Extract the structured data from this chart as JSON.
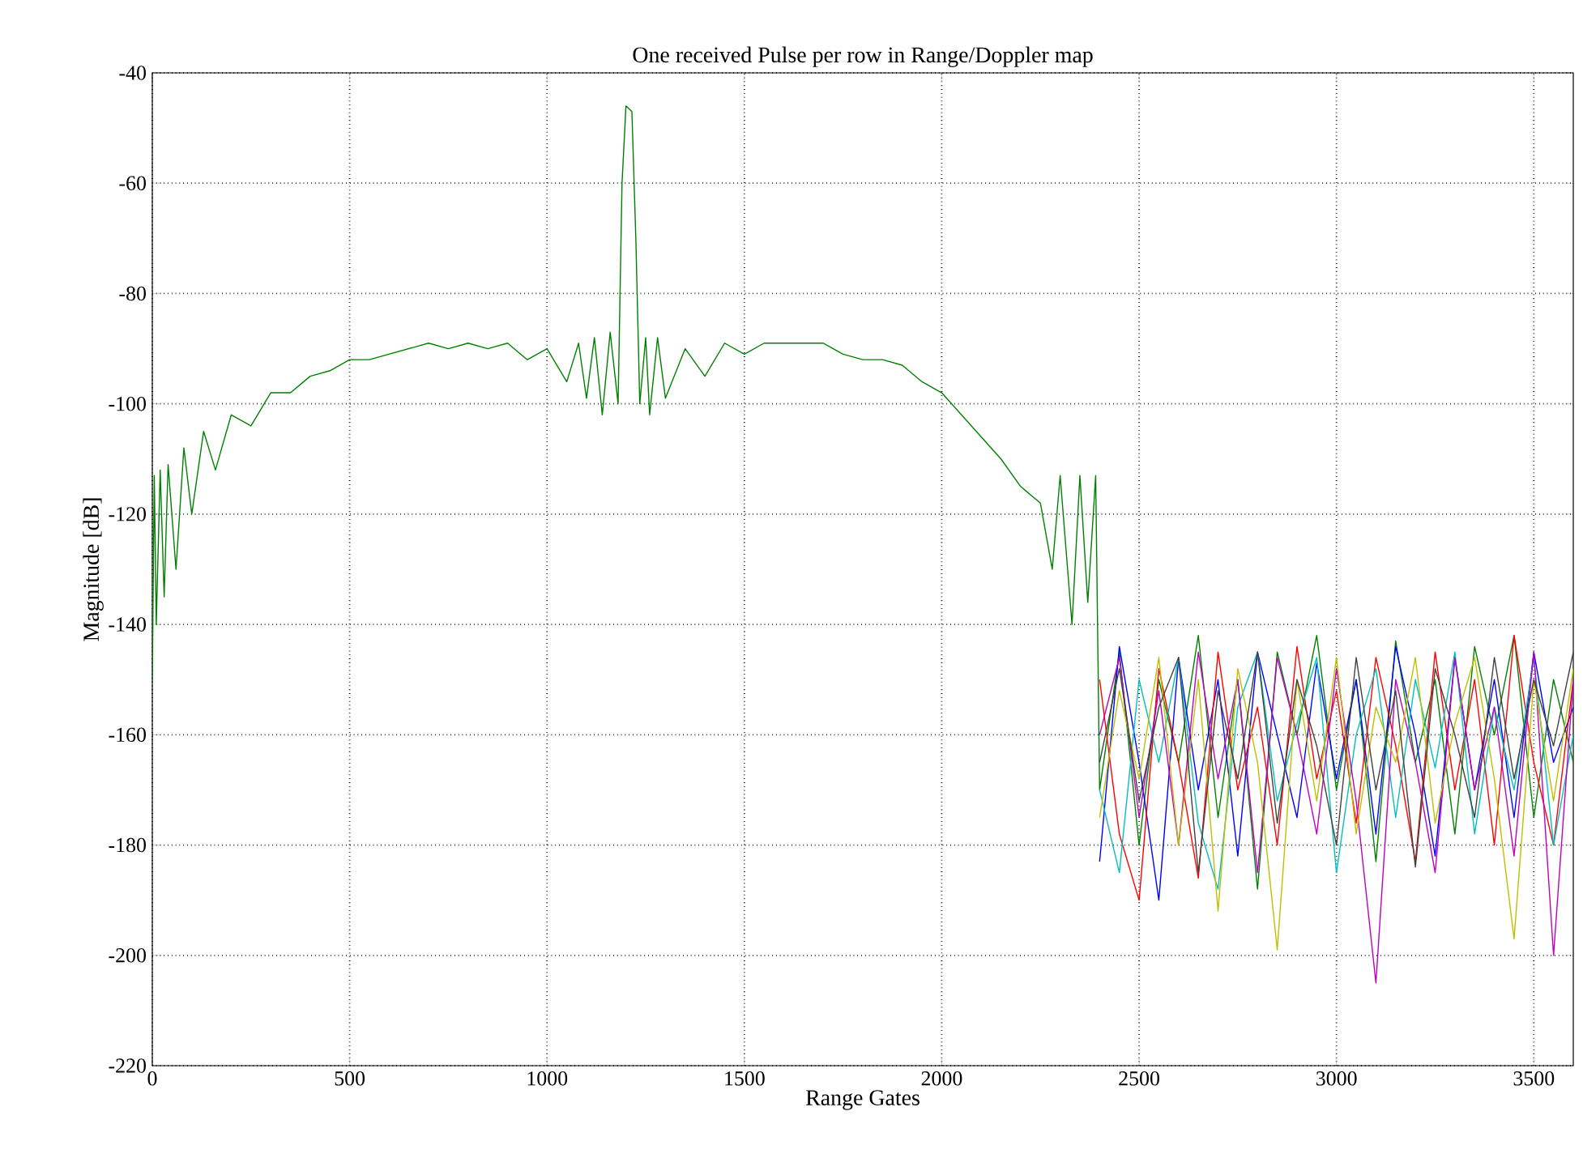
{
  "chart_data": {
    "type": "line",
    "title": "One received Pulse per row in Range/Doppler map",
    "xlabel": "Range Gates",
    "ylabel": "Magnitude [dB]",
    "xlim": [
      0,
      3600
    ],
    "ylim": [
      -220,
      -40
    ],
    "xticks": [
      0,
      500,
      1000,
      1500,
      2000,
      2500,
      3000,
      3500
    ],
    "yticks": [
      -220,
      -200,
      -180,
      -160,
      -140,
      -120,
      -100,
      -80,
      -60,
      -40
    ],
    "grid": true,
    "line_style": "solid",
    "series": [
      {
        "color": "#008000",
        "x": [
          0,
          5,
          10,
          20,
          30,
          40,
          60,
          80,
          100,
          130,
          160,
          200,
          250,
          300,
          350,
          400,
          450,
          500,
          550,
          600,
          700,
          750,
          800,
          850,
          900,
          950,
          1000,
          1050,
          1080,
          1100,
          1120,
          1140,
          1160,
          1180,
          1190,
          1200,
          1215,
          1225,
          1235,
          1250,
          1260,
          1280,
          1300,
          1350,
          1400,
          1450,
          1500,
          1550,
          1600,
          1700,
          1750,
          1800,
          1850,
          1900,
          1950,
          2000,
          2050,
          2100,
          2150,
          2200,
          2250,
          2280,
          2300,
          2330,
          2350,
          2370,
          2390,
          2400,
          2450,
          2500,
          2550,
          2600,
          2650,
          2700,
          2750,
          2800,
          2850,
          2900,
          2950,
          3000,
          3050,
          3100,
          3150,
          3200,
          3250,
          3300,
          3350,
          3400,
          3450,
          3500,
          3550,
          3600
        ],
        "values": [
          -150,
          -113,
          -140,
          -112,
          -135,
          -111,
          -130,
          -108,
          -120,
          -105,
          -112,
          -102,
          -104,
          -98,
          -98,
          -95,
          -94,
          -92,
          -92,
          -91,
          -89,
          -90,
          -89,
          -90,
          -89,
          -92,
          -90,
          -96,
          -89,
          -99,
          -88,
          -102,
          -87,
          -100,
          -60,
          -46,
          -47,
          -70,
          -100,
          -88,
          -102,
          -88,
          -99,
          -90,
          -95,
          -89,
          -91,
          -89,
          -89,
          -89,
          -91,
          -92,
          -92,
          -93,
          -96,
          -98,
          -102,
          -106,
          -110,
          -115,
          -118,
          -130,
          -113,
          -140,
          -113,
          -136,
          -113,
          -170,
          -145,
          -180,
          -150,
          -165,
          -142,
          -175,
          -150,
          -188,
          -145,
          -160,
          -142,
          -170,
          -150,
          -183,
          -143,
          -165,
          -150,
          -178,
          -144,
          -160,
          -142,
          -175,
          -150,
          -165
        ]
      },
      {
        "color": "#0000ff",
        "x": [
          2400,
          2450,
          2500,
          2550,
          2600,
          2650,
          2700,
          2750,
          2800,
          2850,
          2900,
          2950,
          3000,
          3050,
          3100,
          3150,
          3200,
          3250,
          3300,
          3350,
          3400,
          3450,
          3500,
          3550,
          3600
        ],
        "values": [
          -183,
          -144,
          -165,
          -190,
          -146,
          -170,
          -150,
          -182,
          -145,
          -160,
          -175,
          -147,
          -168,
          -150,
          -178,
          -144,
          -160,
          -182,
          -146,
          -170,
          -150,
          -175,
          -145,
          -165,
          -155
        ]
      },
      {
        "color": "#ff0000",
        "x": [
          2400,
          2450,
          2500,
          2550,
          2600,
          2650,
          2700,
          2750,
          2800,
          2850,
          2900,
          2950,
          3000,
          3050,
          3100,
          3150,
          3200,
          3250,
          3300,
          3350,
          3400,
          3450,
          3500,
          3550,
          3600
        ],
        "values": [
          -150,
          -178,
          -190,
          -148,
          -165,
          -186,
          -145,
          -170,
          -155,
          -180,
          -144,
          -168,
          -152,
          -176,
          -146,
          -162,
          -183,
          -145,
          -170,
          -150,
          -180,
          -142,
          -165,
          -180,
          -150
        ]
      },
      {
        "color": "#00bfbf",
        "x": [
          2400,
          2450,
          2500,
          2550,
          2600,
          2650,
          2700,
          2750,
          2800,
          2850,
          2900,
          2950,
          3000,
          3050,
          3100,
          3150,
          3200,
          3250,
          3300,
          3350,
          3400,
          3450,
          3500,
          3550,
          3600
        ],
        "values": [
          -170,
          -185,
          -150,
          -165,
          -146,
          -176,
          -188,
          -155,
          -145,
          -172,
          -158,
          -146,
          -185,
          -160,
          -148,
          -175,
          -150,
          -166,
          -145,
          -178,
          -155,
          -170,
          -146,
          -180,
          -160
        ]
      },
      {
        "color": "#bf00bf",
        "x": [
          2400,
          2450,
          2500,
          2550,
          2600,
          2650,
          2700,
          2750,
          2800,
          2850,
          2900,
          2950,
          3000,
          3050,
          3100,
          3150,
          3200,
          3250,
          3300,
          3350,
          3400,
          3450,
          3500,
          3550,
          3600
        ],
        "values": [
          -160,
          -146,
          -175,
          -152,
          -180,
          -145,
          -168,
          -150,
          -185,
          -146,
          -160,
          -178,
          -148,
          -172,
          -205,
          -150,
          -165,
          -185,
          -146,
          -170,
          -155,
          -182,
          -145,
          -200,
          -150
        ]
      },
      {
        "color": "#bfbf00",
        "x": [
          2400,
          2450,
          2500,
          2550,
          2600,
          2650,
          2700,
          2750,
          2800,
          2850,
          2900,
          2950,
          3000,
          3050,
          3100,
          3150,
          3200,
          3250,
          3300,
          3350,
          3400,
          3450,
          3500,
          3550,
          3600
        ],
        "values": [
          -175,
          -152,
          -168,
          -146,
          -180,
          -150,
          -192,
          -148,
          -165,
          -199,
          -150,
          -172,
          -146,
          -178,
          -155,
          -165,
          -146,
          -176,
          -158,
          -146,
          -168,
          -197,
          -150,
          -172,
          -148
        ]
      },
      {
        "color": "#404040",
        "x": [
          2400,
          2450,
          2500,
          2550,
          2600,
          2650,
          2700,
          2750,
          2800,
          2850,
          2900,
          2950,
          3000,
          3050,
          3100,
          3150,
          3200,
          3250,
          3300,
          3350,
          3400,
          3450,
          3500,
          3550,
          3600
        ],
        "values": [
          -165,
          -148,
          -172,
          -155,
          -146,
          -185,
          -152,
          -168,
          -145,
          -176,
          -150,
          -162,
          -180,
          -146,
          -170,
          -152,
          -184,
          -148,
          -160,
          -175,
          -146,
          -168,
          -150,
          -162,
          -145
        ]
      }
    ]
  }
}
